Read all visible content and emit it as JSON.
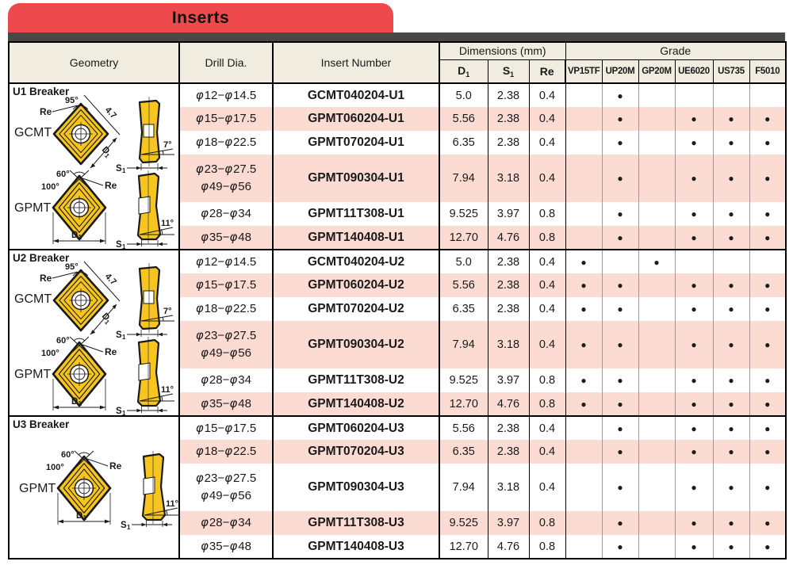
{
  "banner": {
    "title": "Inserts"
  },
  "colors": {
    "banner_red": "#ee4a4e",
    "divider_dark": "#4a4846",
    "header_cream": "#f0ecdf",
    "row_pink": "#fbdbd2",
    "insert_yellow": "#f7c51f",
    "grade_dot": "#1c1c1c"
  },
  "table": {
    "dot": "●",
    "header": {
      "geometry": "Geometry",
      "drill": "Drill Dia.",
      "insert": "Insert Number",
      "dimensions": "Dimensions (mm)",
      "grade": "Grade",
      "dim_cols": [
        {
          "main": "D",
          "sub": "1"
        },
        {
          "main": "S",
          "sub": "1"
        },
        {
          "main": "Re",
          "sub": ""
        }
      ],
      "grade_cols": [
        "VP15TF",
        "UP20M",
        "GP20M",
        "UE6020",
        "US735",
        "F5010"
      ]
    },
    "sections": [
      {
        "id": "u1",
        "label": "U1 Breaker",
        "diagrams": [
          "gcmt",
          "gpmt"
        ],
        "rows": [
          {
            "drill": [
              "φ12−φ14.5"
            ],
            "insert": "GCMT040204-U1",
            "d1": "5.0",
            "s1": "2.38",
            "re": "0.4",
            "grades": [
              0,
              1,
              0,
              0,
              0,
              0
            ],
            "tall": false
          },
          {
            "drill": [
              "φ15−φ17.5"
            ],
            "insert": "GPMT060204-U1",
            "d1": "5.56",
            "s1": "2.38",
            "re": "0.4",
            "grades": [
              0,
              1,
              0,
              1,
              1,
              1
            ],
            "tall": false
          },
          {
            "drill": [
              "φ18−φ22.5"
            ],
            "insert": "GPMT070204-U1",
            "d1": "6.35",
            "s1": "2.38",
            "re": "0.4",
            "grades": [
              0,
              1,
              0,
              1,
              1,
              1
            ],
            "tall": false
          },
          {
            "drill": [
              "φ23−φ27.5",
              "φ49−φ56"
            ],
            "insert": "GPMT090304-U1",
            "d1": "7.94",
            "s1": "3.18",
            "re": "0.4",
            "grades": [
              0,
              1,
              0,
              1,
              1,
              1
            ],
            "tall": true
          },
          {
            "drill": [
              "φ28−φ34"
            ],
            "insert": "GPMT11T308-U1",
            "d1": "9.525",
            "s1": "3.97",
            "re": "0.8",
            "grades": [
              0,
              1,
              0,
              1,
              1,
              1
            ],
            "tall": false
          },
          {
            "drill": [
              "φ35−φ48"
            ],
            "insert": "GPMT140408-U1",
            "d1": "12.70",
            "s1": "4.76",
            "re": "0.8",
            "grades": [
              0,
              1,
              0,
              1,
              1,
              1
            ],
            "tall": false
          }
        ]
      },
      {
        "id": "u2",
        "label": "U2 Breaker",
        "diagrams": [
          "gcmt",
          "gpmt"
        ],
        "rows": [
          {
            "drill": [
              "φ12−φ14.5"
            ],
            "insert": "GCMT040204-U2",
            "d1": "5.0",
            "s1": "2.38",
            "re": "0.4",
            "grades": [
              1,
              0,
              1,
              0,
              0,
              0
            ],
            "tall": false
          },
          {
            "drill": [
              "φ15−φ17.5"
            ],
            "insert": "GPMT060204-U2",
            "d1": "5.56",
            "s1": "2.38",
            "re": "0.4",
            "grades": [
              1,
              1,
              0,
              1,
              1,
              1
            ],
            "tall": false
          },
          {
            "drill": [
              "φ18−φ22.5"
            ],
            "insert": "GPMT070204-U2",
            "d1": "6.35",
            "s1": "2.38",
            "re": "0.4",
            "grades": [
              1,
              1,
              0,
              1,
              1,
              1
            ],
            "tall": false
          },
          {
            "drill": [
              "φ23−φ27.5",
              "φ49−φ56"
            ],
            "insert": "GPMT090304-U2",
            "d1": "7.94",
            "s1": "3.18",
            "re": "0.4",
            "grades": [
              1,
              1,
              0,
              1,
              1,
              1
            ],
            "tall": true
          },
          {
            "drill": [
              "φ28−φ34"
            ],
            "insert": "GPMT11T308-U2",
            "d1": "9.525",
            "s1": "3.97",
            "re": "0.8",
            "grades": [
              1,
              1,
              0,
              1,
              1,
              1
            ],
            "tall": false
          },
          {
            "drill": [
              "φ35−φ48"
            ],
            "insert": "GPMT140408-U2",
            "d1": "12.70",
            "s1": "4.76",
            "re": "0.8",
            "grades": [
              1,
              1,
              0,
              1,
              1,
              1
            ],
            "tall": false
          }
        ]
      },
      {
        "id": "u3",
        "label": "U3 Breaker",
        "diagrams": [
          "gpmt"
        ],
        "rows": [
          {
            "drill": [
              "φ15−φ17.5"
            ],
            "insert": "GPMT060204-U3",
            "d1": "5.56",
            "s1": "2.38",
            "re": "0.4",
            "grades": [
              0,
              1,
              0,
              1,
              1,
              1
            ],
            "tall": false
          },
          {
            "drill": [
              "φ18−φ22.5"
            ],
            "insert": "GPMT070204-U3",
            "d1": "6.35",
            "s1": "2.38",
            "re": "0.4",
            "grades": [
              0,
              1,
              0,
              1,
              1,
              1
            ],
            "tall": false
          },
          {
            "drill": [
              "φ23−φ27.5",
              "φ49−φ56"
            ],
            "insert": "GPMT090304-U3",
            "d1": "7.94",
            "s1": "3.18",
            "re": "0.4",
            "grades": [
              0,
              1,
              0,
              1,
              1,
              1
            ],
            "tall": true
          },
          {
            "drill": [
              "φ28−φ34"
            ],
            "insert": "GPMT11T308-U3",
            "d1": "9.525",
            "s1": "3.97",
            "re": "0.8",
            "grades": [
              0,
              1,
              0,
              1,
              1,
              1
            ],
            "tall": false
          },
          {
            "drill": [
              "φ35−φ48"
            ],
            "insert": "GPMT140408-U3",
            "d1": "12.70",
            "s1": "4.76",
            "re": "0.8",
            "grades": [
              0,
              1,
              0,
              1,
              1,
              1
            ],
            "tall": false
          }
        ]
      }
    ]
  },
  "diagrams": {
    "gcmt": {
      "label": "GCMT",
      "corner_angle": "95°",
      "corner_radius": "Re",
      "edge_length": "4.7",
      "dia_main": "D",
      "dia_sub": "1",
      "relief_angle": "7°",
      "thick_main": "S",
      "thick_sub": "1"
    },
    "gpmt": {
      "label": "GPMT",
      "point_angle": "60°",
      "included_angle": "100°",
      "corner_radius": "Re",
      "dia_main": "D",
      "dia_sub": "1",
      "relief_angle": "11°",
      "thick_main": "S",
      "thick_sub": "1"
    }
  }
}
